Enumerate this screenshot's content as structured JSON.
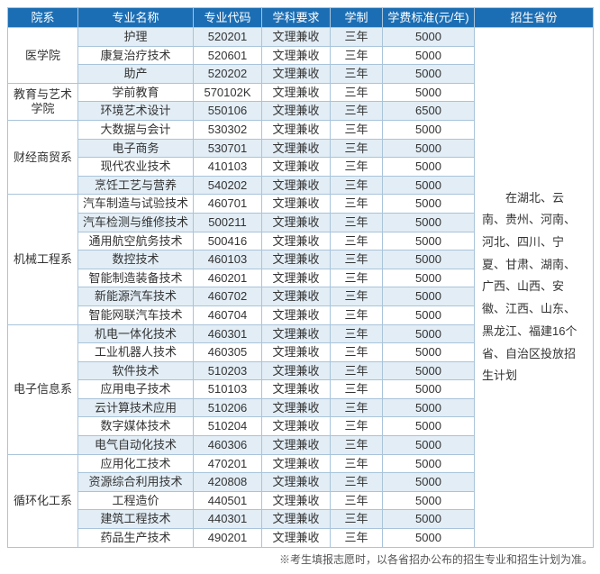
{
  "headers": [
    "院系",
    "专业名称",
    "专业代码",
    "学科要求",
    "学制",
    "学费标准(元/年)",
    "招生省份"
  ],
  "provinces_text": "　　在湖北、云南、贵州、河南、河北、四川、宁夏、甘肃、湖南、广西、山西、安徽、江西、山东、黑龙江、福建16个省、自治区投放招生计划",
  "footnote": "※考生填报志愿时，以各省招办公布的招生专业和招生计划为准。",
  "colors": {
    "header_bg": "#1c6eb4",
    "header_fg": "#ffffff",
    "border": "#a9c4da",
    "row_alt_bg": "#e2edf5",
    "row_plain_bg": "#ffffff"
  },
  "departments": [
    {
      "name": "医学院",
      "majors": [
        {
          "name": "护理",
          "code": "520201",
          "subj": "文理兼收",
          "dur": "三年",
          "fee": "5000"
        },
        {
          "name": "康复治疗技术",
          "code": "520601",
          "subj": "文理兼收",
          "dur": "三年",
          "fee": "5000"
        },
        {
          "name": "助产",
          "code": "520202",
          "subj": "文理兼收",
          "dur": "三年",
          "fee": "5000"
        }
      ]
    },
    {
      "name": "教育与艺术学院",
      "majors": [
        {
          "name": "学前教育",
          "code": "570102K",
          "subj": "文理兼收",
          "dur": "三年",
          "fee": "5000"
        },
        {
          "name": "环境艺术设计",
          "code": "550106",
          "subj": "文理兼收",
          "dur": "三年",
          "fee": "6500"
        }
      ]
    },
    {
      "name": "财经商贸系",
      "majors": [
        {
          "name": "大数据与会计",
          "code": "530302",
          "subj": "文理兼收",
          "dur": "三年",
          "fee": "5000"
        },
        {
          "name": "电子商务",
          "code": "530701",
          "subj": "文理兼收",
          "dur": "三年",
          "fee": "5000"
        },
        {
          "name": "现代农业技术",
          "code": "410103",
          "subj": "文理兼收",
          "dur": "三年",
          "fee": "5000"
        },
        {
          "name": "烹饪工艺与营养",
          "code": "540202",
          "subj": "文理兼收",
          "dur": "三年",
          "fee": "5000"
        }
      ]
    },
    {
      "name": "机械工程系",
      "majors": [
        {
          "name": "汽车制造与试验技术",
          "code": "460701",
          "subj": "文理兼收",
          "dur": "三年",
          "fee": "5000"
        },
        {
          "name": "汽车检测与维修技术",
          "code": "500211",
          "subj": "文理兼收",
          "dur": "三年",
          "fee": "5000"
        },
        {
          "name": "通用航空航务技术",
          "code": "500416",
          "subj": "文理兼收",
          "dur": "三年",
          "fee": "5000"
        },
        {
          "name": "数控技术",
          "code": "460103",
          "subj": "文理兼收",
          "dur": "三年",
          "fee": "5000"
        },
        {
          "name": "智能制造装备技术",
          "code": "460201",
          "subj": "文理兼收",
          "dur": "三年",
          "fee": "5000"
        },
        {
          "name": "新能源汽车技术",
          "code": "460702",
          "subj": "文理兼收",
          "dur": "三年",
          "fee": "5000"
        },
        {
          "name": "智能网联汽车技术",
          "code": "460704",
          "subj": "文理兼收",
          "dur": "三年",
          "fee": "5000"
        }
      ]
    },
    {
      "name": "电子信息系",
      "majors": [
        {
          "name": "机电一体化技术",
          "code": "460301",
          "subj": "文理兼收",
          "dur": "三年",
          "fee": "5000"
        },
        {
          "name": "工业机器人技术",
          "code": "460305",
          "subj": "文理兼收",
          "dur": "三年",
          "fee": "5000"
        },
        {
          "name": "软件技术",
          "code": "510203",
          "subj": "文理兼收",
          "dur": "三年",
          "fee": "5000"
        },
        {
          "name": "应用电子技术",
          "code": "510103",
          "subj": "文理兼收",
          "dur": "三年",
          "fee": "5000"
        },
        {
          "name": "云计算技术应用",
          "code": "510206",
          "subj": "文理兼收",
          "dur": "三年",
          "fee": "5000"
        },
        {
          "name": "数字媒体技术",
          "code": "510204",
          "subj": "文理兼收",
          "dur": "三年",
          "fee": "5000"
        },
        {
          "name": "电气自动化技术",
          "code": "460306",
          "subj": "文理兼收",
          "dur": "三年",
          "fee": "5000"
        }
      ]
    },
    {
      "name": "循环化工系",
      "majors": [
        {
          "name": "应用化工技术",
          "code": "470201",
          "subj": "文理兼收",
          "dur": "三年",
          "fee": "5000"
        },
        {
          "name": "资源综合利用技术",
          "code": "420808",
          "subj": "文理兼收",
          "dur": "三年",
          "fee": "5000"
        },
        {
          "name": "工程造价",
          "code": "440501",
          "subj": "文理兼收",
          "dur": "三年",
          "fee": "5000"
        },
        {
          "name": "建筑工程技术",
          "code": "440301",
          "subj": "文理兼收",
          "dur": "三年",
          "fee": "5000"
        },
        {
          "name": "药品生产技术",
          "code": "490201",
          "subj": "文理兼收",
          "dur": "三年",
          "fee": "5000"
        }
      ]
    }
  ]
}
